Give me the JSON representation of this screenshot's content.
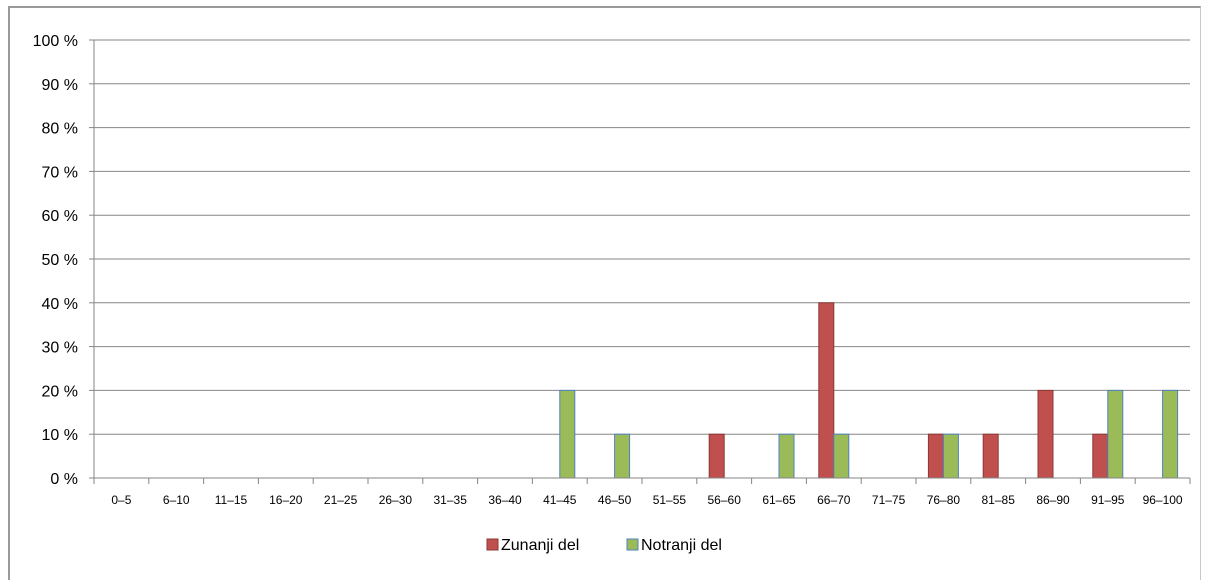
{
  "chart_data": {
    "type": "bar",
    "categories": [
      "0–5",
      "6–10",
      "11–15",
      "16–20",
      "21–25",
      "26–30",
      "31–35",
      "36–40",
      "41–45",
      "46–50",
      "51–55",
      "56–60",
      "61–65",
      "66–70",
      "71–75",
      "76–80",
      "81–85",
      "86–90",
      "91–95",
      "96–100"
    ],
    "series": [
      {
        "name": "Zunanji del",
        "color": "#c0504d",
        "values": [
          0,
          0,
          0,
          0,
          0,
          0,
          0,
          0,
          0,
          0,
          0,
          10,
          0,
          40,
          0,
          10,
          10,
          20,
          10,
          0
        ]
      },
      {
        "name": "Notranji del",
        "color": "#9bbb59",
        "values": [
          0,
          0,
          0,
          0,
          0,
          0,
          0,
          0,
          20,
          10,
          0,
          0,
          10,
          10,
          0,
          10,
          0,
          0,
          20,
          20
        ]
      }
    ],
    "yticks": [
      "0 %",
      "10 %",
      "20 %",
      "30 %",
      "40 %",
      "50 %",
      "60 %",
      "70 %",
      "80 %",
      "90 %",
      "100 %"
    ],
    "ylim": [
      0,
      100
    ],
    "grid": true,
    "legend": "bottom",
    "title": "",
    "xlabel": "",
    "ylabel": ""
  }
}
